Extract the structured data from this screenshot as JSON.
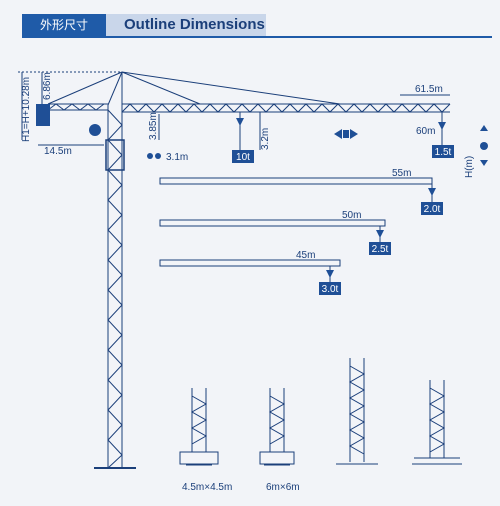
{
  "header": {
    "title_cn": "外形尺寸",
    "title_en": "Outline Dimensions"
  },
  "labels": {
    "height_formula": "H1=H+10.28m",
    "top_height": "6.86m",
    "counter_jib": "14.5m",
    "cab_height": "3.85m",
    "hook_offset": "3.2m",
    "trolley_width": "3.1m",
    "jib_height": "H(m)"
  },
  "jibs": [
    {
      "length": "61.5m",
      "load": ""
    },
    {
      "length": "60m",
      "load": "1.5t"
    },
    {
      "length": "55m",
      "load": "2.0t"
    },
    {
      "length": "50m",
      "load": "2.5t"
    },
    {
      "length": "45m",
      "load": "3.0t"
    }
  ],
  "max_load": "10t",
  "foundations": [
    {
      "size": "4.5m×4.5m"
    },
    {
      "size": "6m×6m"
    },
    {
      "size": ""
    },
    {
      "size": ""
    }
  ],
  "colors": {
    "primary": "#1f4f96",
    "line": "#1b3f7a",
    "background": "#f2f4f8"
  }
}
